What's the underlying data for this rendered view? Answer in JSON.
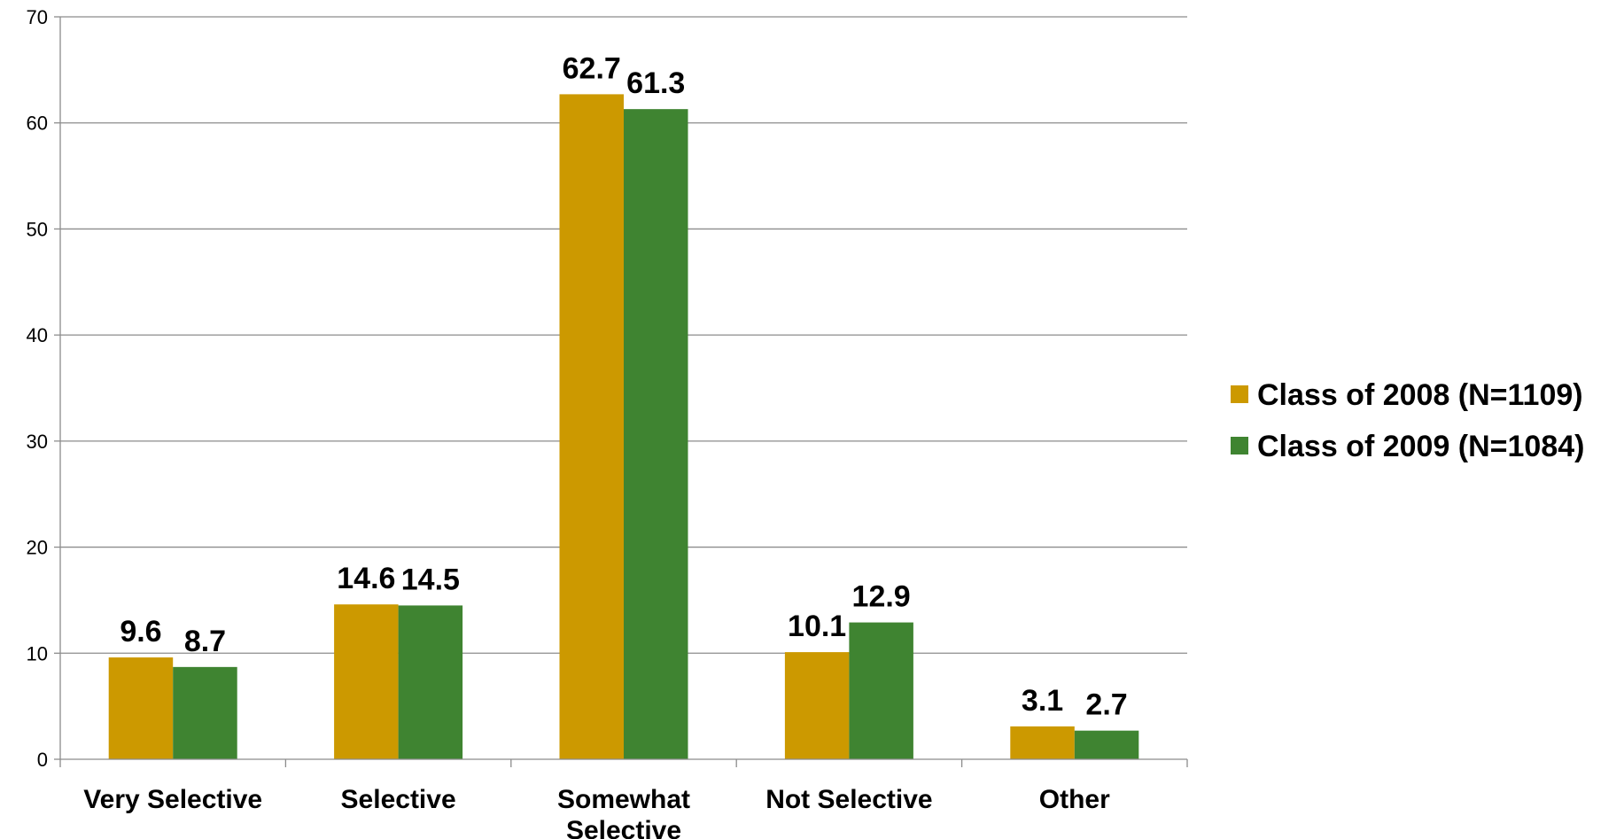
{
  "chart_data": {
    "type": "bar",
    "categories": [
      [
        "Very Selective"
      ],
      [
        "Selective"
      ],
      [
        "Somewhat",
        "Selective"
      ],
      [
        "Not Selective"
      ],
      [
        "Other"
      ]
    ],
    "series": [
      {
        "name": "Class of 2008 (N=1109)",
        "color": "#CC9900",
        "values": [
          9.6,
          14.6,
          62.7,
          10.1,
          3.1
        ],
        "labels": [
          "9.6",
          "14.6",
          "62.7",
          "10.1",
          "3.1"
        ]
      },
      {
        "name": "Class of 2009 (N=1084)",
        "color": "#3F8431",
        "values": [
          8.7,
          14.5,
          61.3,
          12.9,
          2.7
        ],
        "labels": [
          "8.7",
          "14.5",
          "61.3",
          "12.9",
          "2.7"
        ]
      }
    ],
    "ylim": [
      0,
      70
    ],
    "yticks": [
      0,
      10,
      20,
      30,
      40,
      50,
      60,
      70
    ],
    "grid": true,
    "legend_position": "right",
    "title": "",
    "xlabel": "",
    "ylabel": ""
  }
}
